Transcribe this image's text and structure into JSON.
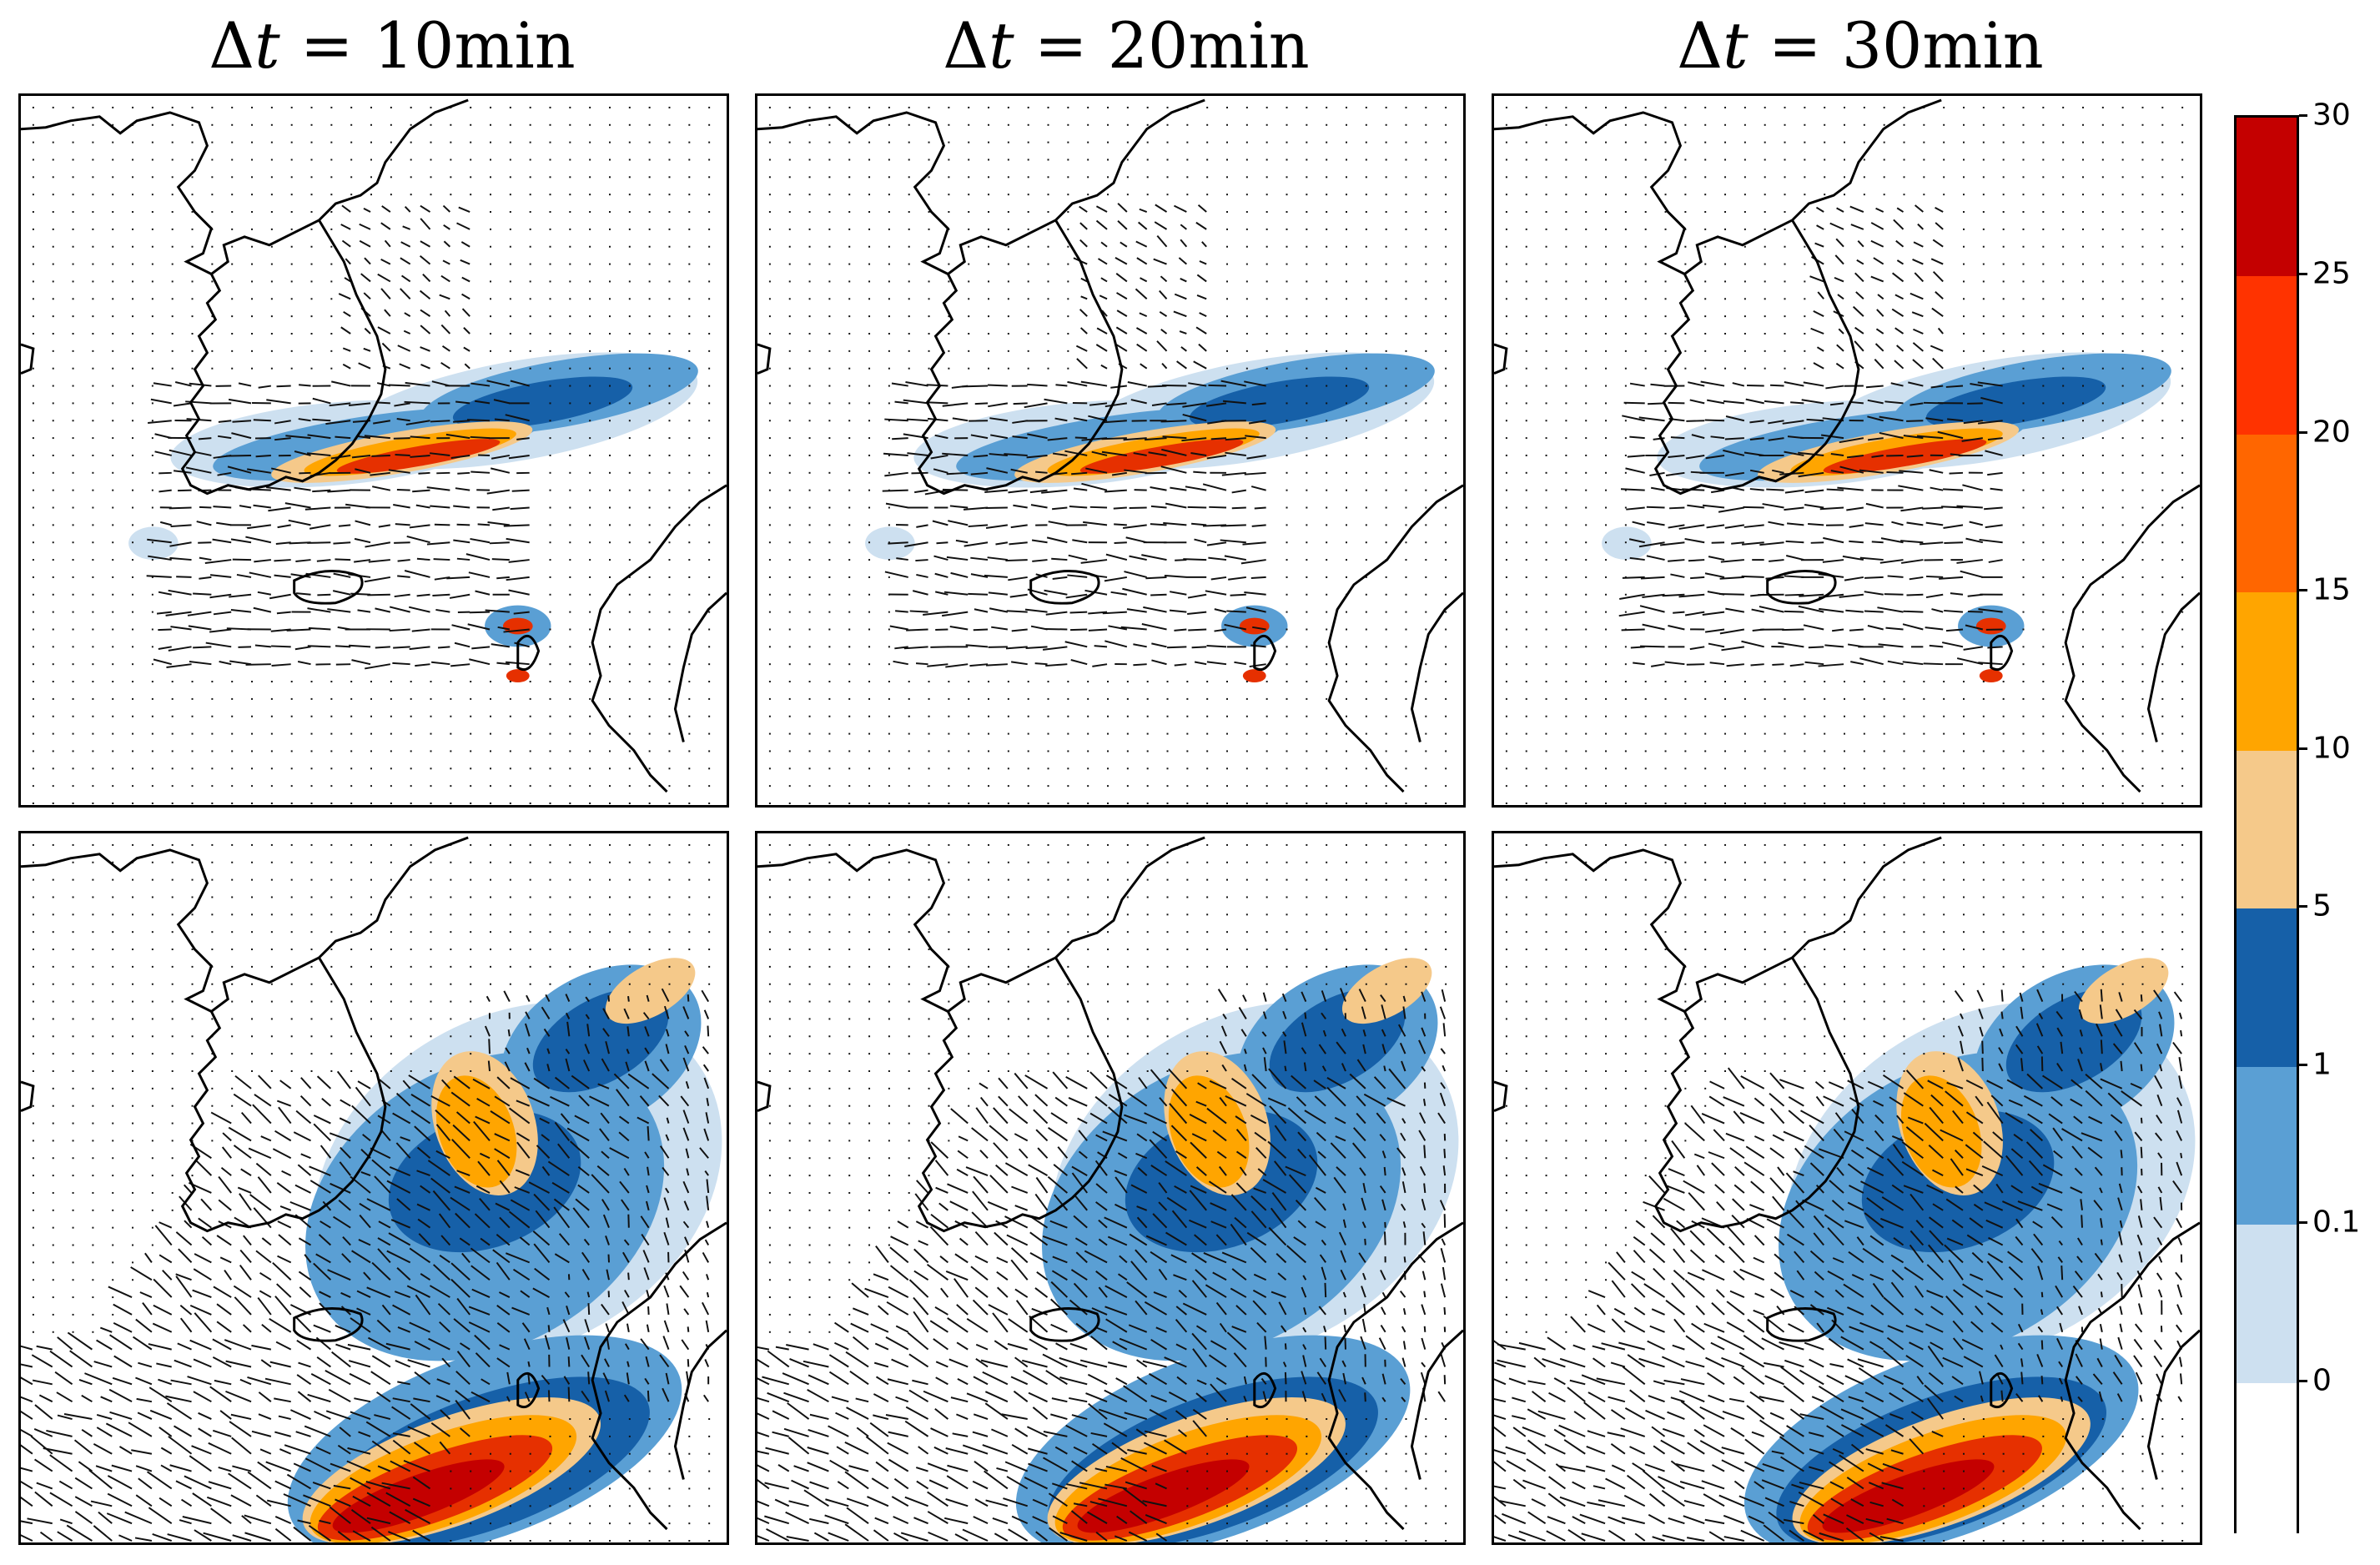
{
  "titles": [
    {
      "delta": "Δ",
      "var": "t",
      "rest": " = 10min"
    },
    {
      "delta": "Δ",
      "var": "t",
      "rest": " = 20min"
    },
    {
      "delta": "Δ",
      "var": "t",
      "rest": " = 30min"
    }
  ],
  "colorbar": {
    "labels": [
      "30",
      "25",
      "20",
      "15",
      "10",
      "5",
      "1",
      "0.1",
      "0"
    ],
    "colors": [
      "#c40000",
      "#ff3300",
      "#ff6600",
      "#ffa500",
      "#f5c98a",
      "#1660a8",
      "#5a9fd4",
      "#cde0f0",
      "#ffffff"
    ]
  },
  "colors": {
    "light": "#cde0f0",
    "mid": "#5a9fd4",
    "dark": "#1660a8",
    "tan": "#f5c98a",
    "orange": "#ffa500",
    "red": "#e63000",
    "darkred": "#c40000"
  }
}
